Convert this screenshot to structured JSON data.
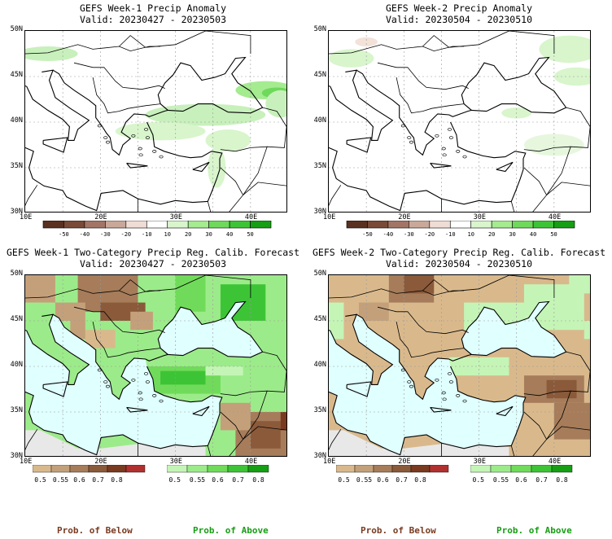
{
  "panels": [
    {
      "title": "GEFS Week-1 Precip Anomaly",
      "valid": "Valid: 20230427 - 20230503",
      "kind": "anomaly",
      "id": "w1-anom"
    },
    {
      "title": "GEFS Week-2 Precip Anomaly",
      "valid": "Valid: 20230504 - 20230510",
      "kind": "anomaly",
      "id": "w2-anom"
    },
    {
      "title": "GEFS Week-1 Two-Category Precip Reg. Calib. Forecast",
      "valid": "Valid: 20230427 - 20230503",
      "kind": "prob",
      "id": "w1-prob"
    },
    {
      "title": "GEFS Week-2 Two-Category Precip Reg. Calib. Forecast",
      "valid": "Valid: 20230504 - 20230510",
      "kind": "prob",
      "id": "w2-prob"
    }
  ],
  "lat_labels": [
    "50N",
    "45N",
    "40N",
    "35N",
    "30N"
  ],
  "lon_labels": [
    "10E",
    "20E",
    "30E",
    "40E"
  ],
  "anomaly_colorbar": {
    "labels": [
      "-50",
      "-40",
      "-30",
      "-20",
      "-10",
      "10",
      "20",
      "30",
      "40",
      "50"
    ],
    "colors": [
      "#5a3020",
      "#7a4a36",
      "#a37566",
      "#c9a89a",
      "#efdcd4",
      "#ffffff",
      "#d8f5cc",
      "#a5eb90",
      "#6ed95a",
      "#3dc436",
      "#169e14"
    ]
  },
  "below_colorbar": {
    "labels": [
      "0.5",
      "0.55",
      "0.6",
      "0.7",
      "0.8"
    ],
    "colors": [
      "#d9b98c",
      "#c4a07a",
      "#a67c5a",
      "#8a5a3a",
      "#7a3a20",
      "#b03030"
    ]
  },
  "above_colorbar": {
    "labels": [
      "0.5",
      "0.55",
      "0.6",
      "0.7",
      "0.8"
    ],
    "colors": [
      "#c4f5b6",
      "#9ceb8a",
      "#70db5a",
      "#3dc436",
      "#169e14"
    ]
  },
  "prob_labels": {
    "below": "Prob. of Below",
    "above": "Prob. of Above"
  },
  "colors": {
    "below_text": "#7a3a20",
    "above_text": "#169e14",
    "sea": "#e0ffff",
    "land_gray": "#e8e8e8"
  }
}
